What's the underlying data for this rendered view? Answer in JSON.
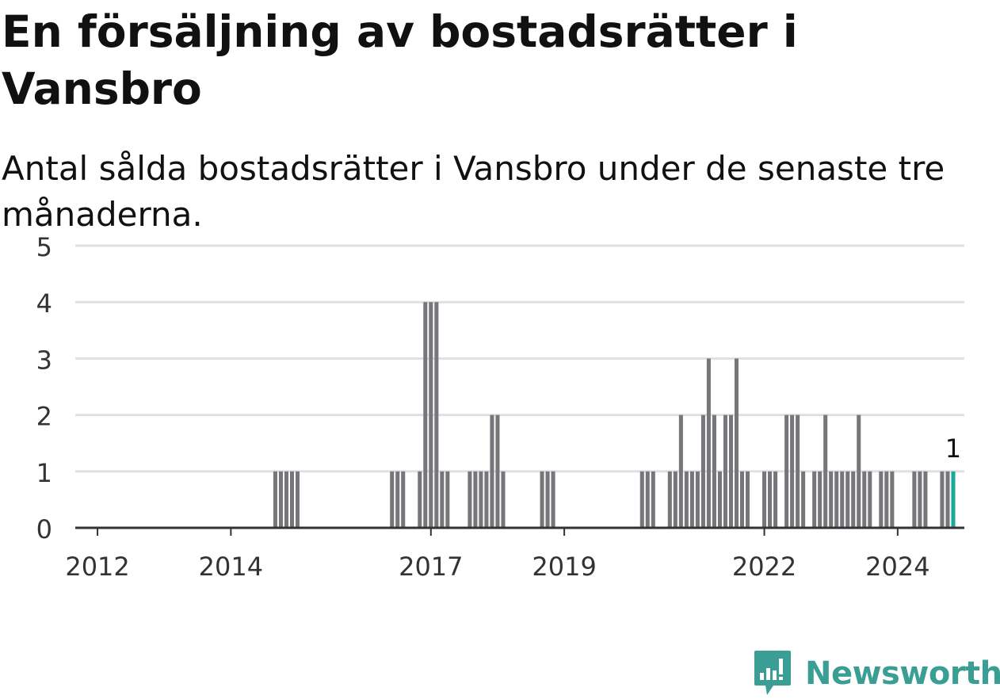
{
  "title": "En försäljning av bostadsrätter i Vansbro",
  "subtitle": "Antal sålda bostadsrätter i Vansbro under de senaste tre månaderna.",
  "colors": {
    "bar": "#76767b",
    "highlight": "#1aa899",
    "grid": "#e0e0e0",
    "axis": "#333333",
    "brand": "#3a9e95"
  },
  "brand": {
    "name": "Newsworthy",
    "icon": "bar-chart-speech-bubble-icon"
  },
  "chart_data": {
    "type": "bar",
    "title": "En försäljning av bostadsrätter i Vansbro",
    "subtitle": "Antal sålda bostadsrätter i Vansbro under de senaste tre månaderna.",
    "xlabel": "",
    "ylabel": "",
    "ylim": [
      0,
      5
    ],
    "yticks": [
      0,
      1,
      2,
      3,
      4,
      5
    ],
    "xlim": [
      "2011-09",
      "2025-01"
    ],
    "xticks": [
      "2012",
      "2014",
      "2017",
      "2019",
      "2022",
      "2024"
    ],
    "grid": true,
    "legend": "none",
    "x": [
      "2014-09",
      "2014-10",
      "2014-11",
      "2014-12",
      "2015-01",
      "2016-06",
      "2016-07",
      "2016-08",
      "2016-11",
      "2016-12",
      "2017-01",
      "2017-02",
      "2017-03",
      "2017-04",
      "2017-08",
      "2017-09",
      "2017-10",
      "2017-11",
      "2017-12",
      "2018-01",
      "2018-02",
      "2018-09",
      "2018-10",
      "2018-11",
      "2020-03",
      "2020-04",
      "2020-05",
      "2020-08",
      "2020-09",
      "2020-10",
      "2020-11",
      "2020-12",
      "2021-01",
      "2021-02",
      "2021-03",
      "2021-04",
      "2021-05",
      "2021-06",
      "2021-07",
      "2021-08",
      "2021-09",
      "2021-10",
      "2022-01",
      "2022-02",
      "2022-03",
      "2022-05",
      "2022-06",
      "2022-07",
      "2022-08",
      "2022-10",
      "2022-11",
      "2022-12",
      "2023-01",
      "2023-02",
      "2023-03",
      "2023-04",
      "2023-05",
      "2023-06",
      "2023-07",
      "2023-08",
      "2023-10",
      "2023-11",
      "2023-12",
      "2024-04",
      "2024-05",
      "2024-06",
      "2024-09",
      "2024-10",
      "2024-11"
    ],
    "values": [
      1,
      1,
      1,
      1,
      1,
      1,
      1,
      1,
      1,
      4,
      4,
      4,
      1,
      1,
      1,
      1,
      1,
      1,
      2,
      2,
      1,
      1,
      1,
      1,
      1,
      1,
      1,
      1,
      1,
      2,
      1,
      1,
      1,
      2,
      3,
      2,
      1,
      2,
      2,
      3,
      1,
      1,
      1,
      1,
      1,
      2,
      2,
      2,
      1,
      1,
      1,
      2,
      1,
      1,
      1,
      1,
      1,
      2,
      1,
      1,
      1,
      1,
      1,
      1,
      1,
      1,
      1,
      1,
      1
    ],
    "highlight": {
      "x": "2024-11",
      "value": 1,
      "label": "1"
    }
  }
}
